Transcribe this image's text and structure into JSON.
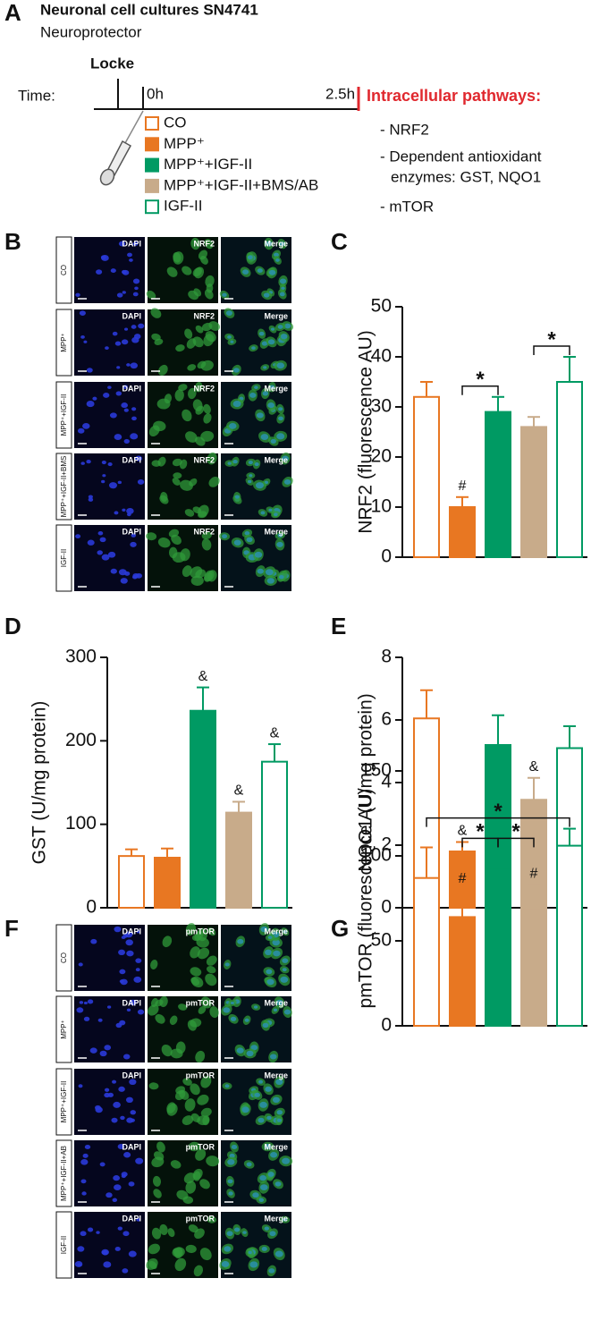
{
  "panel_a": {
    "letter": "A",
    "title": "Neuronal cell cultures SN4741",
    "subtitle": "Neuroprotector",
    "locke": "Locke",
    "time_label": "Time:",
    "start": "0h",
    "end": "2.5h",
    "pathways_title": "Intracellular pathways:",
    "pathways": [
      "- NRF2",
      "- Dependent antioxidant",
      "enzymes: GST, NQO1",
      "- mTOR"
    ],
    "legend": [
      {
        "name": "CO",
        "color": "#e87722",
        "filled": false
      },
      {
        "name": "MPP⁺",
        "color": "#e87722",
        "filled": true
      },
      {
        "name": "MPP⁺+IGF-II",
        "color": "#009a63",
        "filled": true
      },
      {
        "name": "MPP⁺+IGF-II+BMS/AB",
        "color": "#c8ab8a",
        "filled": true
      },
      {
        "name": "IGF-II",
        "color": "#009a63",
        "filled": false
      }
    ]
  },
  "panel_b": {
    "letter": "B",
    "columns": [
      "DAPI",
      "NRF2",
      "Merge"
    ],
    "rows": [
      "CO",
      "MPP⁺",
      "MPP⁺+IGF-II",
      "MPP⁺+IGF-II+BMS",
      "IGF-II"
    ]
  },
  "panel_f": {
    "letter": "F",
    "columns": [
      "DAPI",
      "pmTOR",
      "Merge"
    ],
    "rows": [
      "CO",
      "MPP⁺",
      "MPP⁺+IGF-II",
      "MPP⁺+IGF-II+AB",
      "IGF-II"
    ]
  },
  "chart_data": [
    {
      "type": "bar",
      "panel": "C",
      "y_label": "NRF2 (fluorescence AU)",
      "categories": [
        null,
        null,
        null,
        null,
        null
      ],
      "values": [
        32,
        10,
        29,
        26,
        35
      ],
      "errors": [
        3,
        2,
        3,
        2,
        5
      ],
      "colors": [
        "#e87722",
        "#e87722",
        "#009a63",
        "#c8ab8a",
        "#009a63"
      ],
      "filled": [
        false,
        true,
        true,
        true,
        false
      ],
      "ylim": [
        0,
        50
      ],
      "yticks": [
        0,
        10,
        20,
        30,
        40,
        50
      ],
      "annotations": [
        {
          "text": "#",
          "bar": 1
        }
      ],
      "brackets": [
        {
          "text": "*",
          "from": 1,
          "to": 2
        },
        {
          "text": "*",
          "from": 3,
          "to": 4
        }
      ]
    },
    {
      "type": "bar",
      "panel": "D",
      "y_label": "GST (U/mg protein)",
      "categories": [
        null,
        null,
        null,
        null,
        null
      ],
      "values": [
        62,
        60,
        236,
        114,
        175
      ],
      "errors": [
        8,
        11,
        28,
        13,
        21
      ],
      "colors": [
        "#e87722",
        "#e87722",
        "#009a63",
        "#c8ab8a",
        "#009a63"
      ],
      "filled": [
        false,
        true,
        true,
        true,
        false
      ],
      "ylim": [
        0,
        300
      ],
      "yticks": [
        0,
        100,
        200,
        300
      ],
      "annotations": [
        {
          "text": "&",
          "bar": 2
        },
        {
          "text": "&",
          "bar": 3
        },
        {
          "text": "&",
          "bar": 4
        }
      ],
      "brackets": []
    },
    {
      "type": "bar",
      "panel": "E",
      "y_label": "NQO1 (U/mg protein)",
      "categories": [
        null,
        null,
        null,
        null,
        null
      ],
      "values": [
        6.05,
        1.8,
        5.2,
        3.45,
        5.1
      ],
      "errors": [
        0.9,
        0.3,
        0.95,
        0.7,
        0.7
      ],
      "colors": [
        "#e87722",
        "#e87722",
        "#009a63",
        "#c8ab8a",
        "#009a63"
      ],
      "filled": [
        false,
        true,
        true,
        true,
        false
      ],
      "ylim": [
        0,
        8
      ],
      "yticks": [
        0,
        2,
        4,
        6,
        8
      ],
      "annotations": [
        {
          "text": "&",
          "bar": 1
        },
        {
          "text": "&",
          "bar": 3
        }
      ],
      "brackets": []
    },
    {
      "type": "bar",
      "panel": "G",
      "y_label": "pmTOR (fluorescence AU)",
      "categories": [
        null,
        null,
        null,
        null,
        null
      ],
      "values": [
        87,
        64,
        93,
        69,
        106
      ],
      "errors": [
        18,
        16,
        11,
        14,
        10
      ],
      "colors": [
        "#e87722",
        "#e87722",
        "#009a63",
        "#c8ab8a",
        "#009a63"
      ],
      "filled": [
        false,
        true,
        true,
        true,
        false
      ],
      "ylim": [
        0,
        150
      ],
      "yticks": [
        0,
        50,
        100,
        150
      ],
      "annotations": [
        {
          "text": "#",
          "bar": 1
        },
        {
          "text": "#",
          "bar": 3
        }
      ],
      "brackets": [
        {
          "text": "*",
          "from": 1,
          "to": 2
        },
        {
          "text": "*",
          "from": 2,
          "to": 3
        },
        {
          "text": "*",
          "from": 0,
          "to": 4
        }
      ]
    }
  ]
}
